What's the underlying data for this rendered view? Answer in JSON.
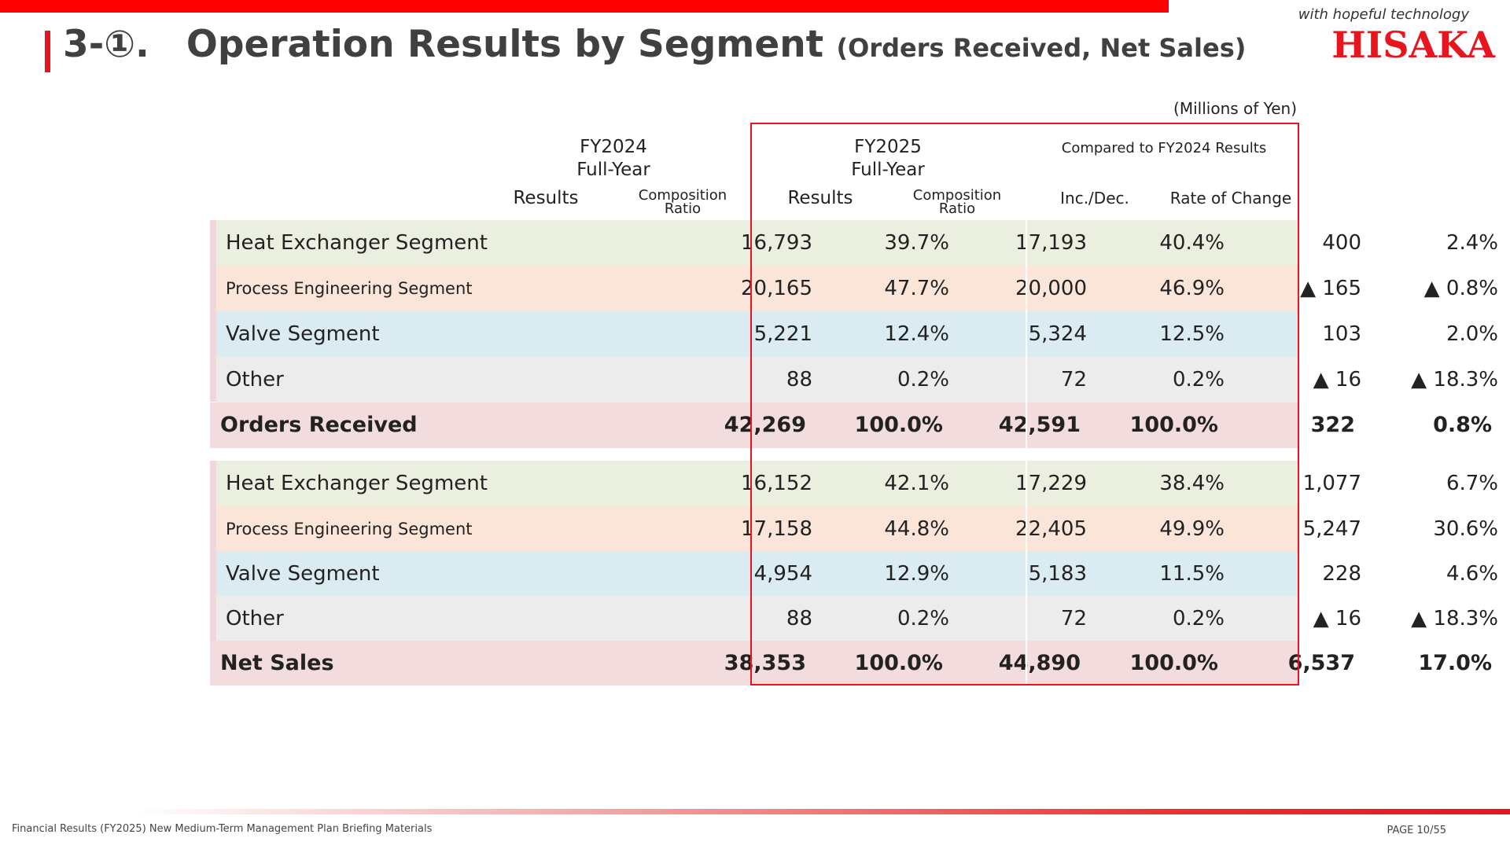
{
  "header": {
    "title": "3-①. Operation Results by Segment",
    "subtitle": "(Orders Received, Net Sales)",
    "tagline": "with hopeful technology",
    "logo": "HISAKA",
    "unit": "(Millions of Yen)"
  },
  "columns": {
    "fy2024": "FY2024",
    "fy2024_sub": "Full-Year",
    "fy2025": "FY2025",
    "fy2025_sub": "Full-Year",
    "compared": "Compared to FY2024 Results",
    "results": "Results",
    "composition_1": "Composition",
    "composition_2": "Ratio",
    "incdec": "Inc./Dec.",
    "rate": "Rate of Change"
  },
  "orders": {
    "rows": [
      {
        "label": "Heat Exchanger Segment",
        "v": [
          "16,793",
          "39.7%",
          "17,193",
          "40.4%",
          "400",
          "2.4%"
        ]
      },
      {
        "label": "Process Engineering Segment",
        "v": [
          "20,165",
          "47.7%",
          "20,000",
          "46.9%",
          "▲ 165",
          "▲ 0.8%"
        ]
      },
      {
        "label": "Valve Segment",
        "v": [
          "5,221",
          "12.4%",
          "5,324",
          "12.5%",
          "103",
          "2.0%"
        ]
      },
      {
        "label": "Other",
        "v": [
          "88",
          "0.2%",
          "72",
          "0.2%",
          "▲ 16",
          "▲ 18.3%"
        ]
      }
    ],
    "total": {
      "label": "Orders Received",
      "v": [
        "42,269",
        "100.0%",
        "42,591",
        "100.0%",
        "322",
        "0.8%"
      ]
    }
  },
  "sales": {
    "rows": [
      {
        "label": "Heat Exchanger Segment",
        "v": [
          "16,152",
          "42.1%",
          "17,229",
          "38.4%",
          "1,077",
          "6.7%"
        ]
      },
      {
        "label": "Process Engineering Segment",
        "v": [
          "17,158",
          "44.8%",
          "22,405",
          "49.9%",
          "5,247",
          "30.6%"
        ]
      },
      {
        "label": "Valve Segment",
        "v": [
          "4,954",
          "12.9%",
          "5,183",
          "11.5%",
          "228",
          "4.6%"
        ]
      },
      {
        "label": "Other",
        "v": [
          "88",
          "0.2%",
          "72",
          "0.2%",
          "▲ 16",
          "▲ 18.3%"
        ]
      }
    ],
    "total": {
      "label": "Net Sales",
      "v": [
        "38,353",
        "100.0%",
        "44,890",
        "100.0%",
        "6,537",
        "17.0%"
      ]
    }
  },
  "footer": {
    "left": "Financial Results (FY2025) New Medium-Term Management Plan Briefing Materials",
    "right": "PAGE 10/55"
  },
  "colors": {
    "accent": "#e8141e",
    "heat": "#ebefe0",
    "process": "#fbe5d9",
    "valve": "#daebf2",
    "other": "#ececec",
    "total": "#f2dcdd"
  }
}
